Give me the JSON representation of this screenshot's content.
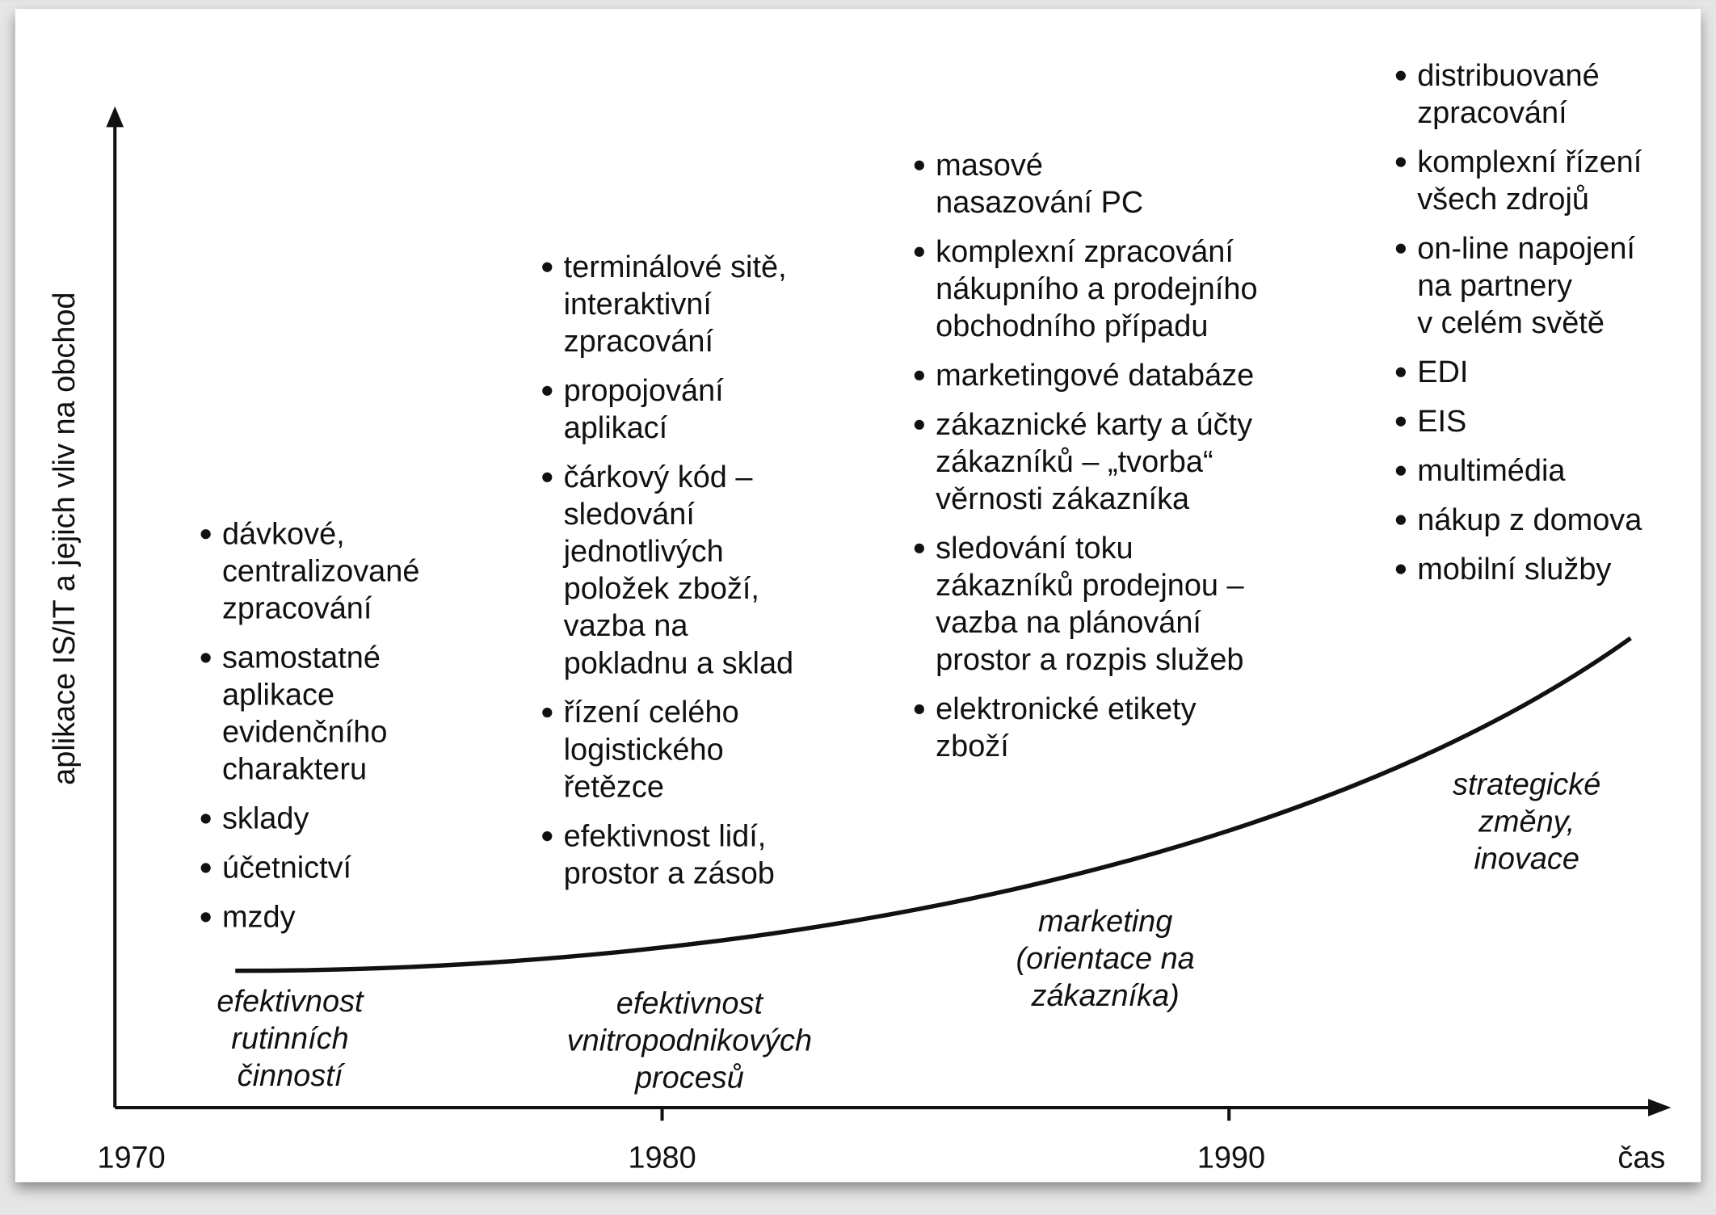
{
  "y_axis_label": "aplikace IS/IT a jejich vliv na obchod",
  "x_axis_label": "čas",
  "years": [
    "1970",
    "1980",
    "1990"
  ],
  "columns": [
    {
      "items": [
        {
          "lines": [
            "dávkové,",
            "centralizované",
            "zpracování"
          ]
        },
        {
          "lines": [
            "samostatné",
            "aplikace",
            "evidenčního",
            "charakteru"
          ]
        },
        {
          "lines": [
            "sklady"
          ]
        },
        {
          "lines": [
            "účetnictví"
          ]
        },
        {
          "lines": [
            "mzdy"
          ]
        }
      ]
    },
    {
      "items": [
        {
          "lines": [
            "terminálové sitě,",
            "interaktivní",
            "zpracování"
          ]
        },
        {
          "lines": [
            "propojování",
            "aplikací"
          ]
        },
        {
          "lines": [
            "čárkový kód –",
            "sledování",
            "jednotlivých",
            "položek zboží,",
            "vazba na",
            "pokladnu a sklad"
          ]
        },
        {
          "lines": [
            "řízení celého",
            "logistického",
            "řetězce"
          ]
        },
        {
          "lines": [
            "efektivnost lidí,",
            "prostor a zásob"
          ]
        }
      ]
    },
    {
      "items": [
        {
          "lines": [
            "masové",
            "nasazování PC"
          ]
        },
        {
          "lines": [
            "komplexní zpracování",
            "nákupního a prodejního",
            "obchodního případu"
          ]
        },
        {
          "lines": [
            "marketingové databáze"
          ]
        },
        {
          "lines": [
            "zákaznické karty a účty",
            "zákazníků  – „tvorba“",
            "věrnosti zákazníka"
          ]
        },
        {
          "lines": [
            "sledování toku",
            "zákazníků prodejnou –",
            "vazba na plánování",
            "prostor a rozpis služeb"
          ]
        },
        {
          "lines": [
            "elektronické etikety",
            "zboží"
          ]
        }
      ]
    },
    {
      "items": [
        {
          "lines": [
            "distribuované",
            "zpracování"
          ]
        },
        {
          "lines": [
            "komplexní řízení",
            "všech zdrojů"
          ]
        },
        {
          "lines": [
            "on-line napojení",
            "na partnery",
            "v celém světě"
          ]
        },
        {
          "lines": [
            "EDI"
          ]
        },
        {
          "lines": [
            "EIS"
          ]
        },
        {
          "lines": [
            "multimédia"
          ]
        },
        {
          "lines": [
            "nákup z domova"
          ]
        },
        {
          "lines": [
            "mobilní služby"
          ]
        }
      ]
    }
  ],
  "phases": [
    {
      "lines": [
        "efektivnost",
        "rutinních",
        "činností"
      ]
    },
    {
      "lines": [
        "efektivnost",
        "vnitropodnikových",
        "procesů"
      ]
    },
    {
      "lines": [
        "marketing",
        "(orientace na",
        "zákazníka)"
      ]
    },
    {
      "lines": [
        "strategické",
        "změny,",
        "inovace"
      ]
    }
  ]
}
